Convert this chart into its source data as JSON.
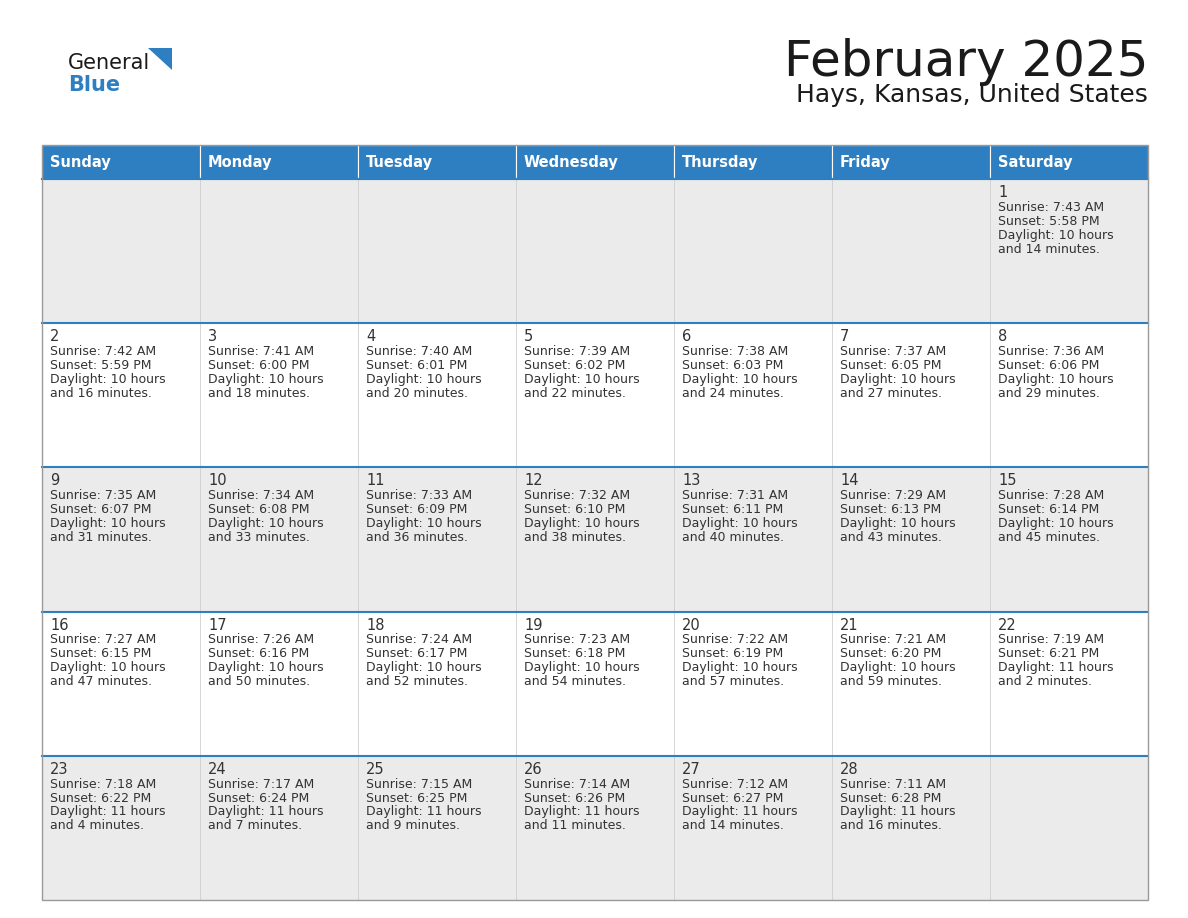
{
  "title": "February 2025",
  "subtitle": "Hays, Kansas, United States",
  "days_of_week": [
    "Sunday",
    "Monday",
    "Tuesday",
    "Wednesday",
    "Thursday",
    "Friday",
    "Saturday"
  ],
  "header_bg": "#2E7EC2",
  "header_text": "#FFFFFF",
  "row_bg_odd": "#EBEBEB",
  "row_bg_even": "#FFFFFF",
  "border_color_week": "#2E7EC2",
  "border_color_cell": "#CCCCCC",
  "day_num_color": "#333333",
  "text_color": "#333333",
  "calendar_data": [
    [
      null,
      null,
      null,
      null,
      null,
      null,
      {
        "day": 1,
        "sunrise": "7:43 AM",
        "sunset": "5:58 PM",
        "daylight": "10 hours",
        "daylight2": "and 14 minutes."
      }
    ],
    [
      {
        "day": 2,
        "sunrise": "7:42 AM",
        "sunset": "5:59 PM",
        "daylight": "10 hours",
        "daylight2": "and 16 minutes."
      },
      {
        "day": 3,
        "sunrise": "7:41 AM",
        "sunset": "6:00 PM",
        "daylight": "10 hours",
        "daylight2": "and 18 minutes."
      },
      {
        "day": 4,
        "sunrise": "7:40 AM",
        "sunset": "6:01 PM",
        "daylight": "10 hours",
        "daylight2": "and 20 minutes."
      },
      {
        "day": 5,
        "sunrise": "7:39 AM",
        "sunset": "6:02 PM",
        "daylight": "10 hours",
        "daylight2": "and 22 minutes."
      },
      {
        "day": 6,
        "sunrise": "7:38 AM",
        "sunset": "6:03 PM",
        "daylight": "10 hours",
        "daylight2": "and 24 minutes."
      },
      {
        "day": 7,
        "sunrise": "7:37 AM",
        "sunset": "6:05 PM",
        "daylight": "10 hours",
        "daylight2": "and 27 minutes."
      },
      {
        "day": 8,
        "sunrise": "7:36 AM",
        "sunset": "6:06 PM",
        "daylight": "10 hours",
        "daylight2": "and 29 minutes."
      }
    ],
    [
      {
        "day": 9,
        "sunrise": "7:35 AM",
        "sunset": "6:07 PM",
        "daylight": "10 hours",
        "daylight2": "and 31 minutes."
      },
      {
        "day": 10,
        "sunrise": "7:34 AM",
        "sunset": "6:08 PM",
        "daylight": "10 hours",
        "daylight2": "and 33 minutes."
      },
      {
        "day": 11,
        "sunrise": "7:33 AM",
        "sunset": "6:09 PM",
        "daylight": "10 hours",
        "daylight2": "and 36 minutes."
      },
      {
        "day": 12,
        "sunrise": "7:32 AM",
        "sunset": "6:10 PM",
        "daylight": "10 hours",
        "daylight2": "and 38 minutes."
      },
      {
        "day": 13,
        "sunrise": "7:31 AM",
        "sunset": "6:11 PM",
        "daylight": "10 hours",
        "daylight2": "and 40 minutes."
      },
      {
        "day": 14,
        "sunrise": "7:29 AM",
        "sunset": "6:13 PM",
        "daylight": "10 hours",
        "daylight2": "and 43 minutes."
      },
      {
        "day": 15,
        "sunrise": "7:28 AM",
        "sunset": "6:14 PM",
        "daylight": "10 hours",
        "daylight2": "and 45 minutes."
      }
    ],
    [
      {
        "day": 16,
        "sunrise": "7:27 AM",
        "sunset": "6:15 PM",
        "daylight": "10 hours",
        "daylight2": "and 47 minutes."
      },
      {
        "day": 17,
        "sunrise": "7:26 AM",
        "sunset": "6:16 PM",
        "daylight": "10 hours",
        "daylight2": "and 50 minutes."
      },
      {
        "day": 18,
        "sunrise": "7:24 AM",
        "sunset": "6:17 PM",
        "daylight": "10 hours",
        "daylight2": "and 52 minutes."
      },
      {
        "day": 19,
        "sunrise": "7:23 AM",
        "sunset": "6:18 PM",
        "daylight": "10 hours",
        "daylight2": "and 54 minutes."
      },
      {
        "day": 20,
        "sunrise": "7:22 AM",
        "sunset": "6:19 PM",
        "daylight": "10 hours",
        "daylight2": "and 57 minutes."
      },
      {
        "day": 21,
        "sunrise": "7:21 AM",
        "sunset": "6:20 PM",
        "daylight": "10 hours",
        "daylight2": "and 59 minutes."
      },
      {
        "day": 22,
        "sunrise": "7:19 AM",
        "sunset": "6:21 PM",
        "daylight": "11 hours",
        "daylight2": "and 2 minutes."
      }
    ],
    [
      {
        "day": 23,
        "sunrise": "7:18 AM",
        "sunset": "6:22 PM",
        "daylight": "11 hours",
        "daylight2": "and 4 minutes."
      },
      {
        "day": 24,
        "sunrise": "7:17 AM",
        "sunset": "6:24 PM",
        "daylight": "11 hours",
        "daylight2": "and 7 minutes."
      },
      {
        "day": 25,
        "sunrise": "7:15 AM",
        "sunset": "6:25 PM",
        "daylight": "11 hours",
        "daylight2": "and 9 minutes."
      },
      {
        "day": 26,
        "sunrise": "7:14 AM",
        "sunset": "6:26 PM",
        "daylight": "11 hours",
        "daylight2": "and 11 minutes."
      },
      {
        "day": 27,
        "sunrise": "7:12 AM",
        "sunset": "6:27 PM",
        "daylight": "11 hours",
        "daylight2": "and 14 minutes."
      },
      {
        "day": 28,
        "sunrise": "7:11 AM",
        "sunset": "6:28 PM",
        "daylight": "11 hours",
        "daylight2": "and 16 minutes."
      },
      null
    ]
  ]
}
